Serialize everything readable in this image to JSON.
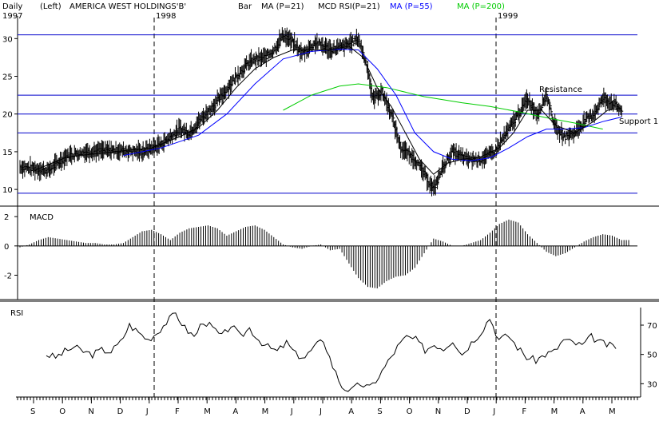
{
  "header": {
    "period": "Daily",
    "scale": "(Left)",
    "ticker": "AMERICA WEST HOLDINGS'B'",
    "bar_label": "Bar",
    "ma21_label": "MA (P=21)",
    "macd_rsi_label": "MCD RSI(P=21)",
    "ma55_label": "MA (P=55)",
    "ma200_label": "MA (P=200)"
  },
  "colors": {
    "ma55": "#0000ff",
    "ma200": "#00cc00",
    "hline": "#0000cc",
    "bars": "#000000"
  },
  "year_labels": [
    "1997",
    "1998",
    "1999"
  ],
  "annotations": {
    "resistance": "Resistance",
    "support": "Support 1"
  },
  "panels": {
    "macd_title": "MACD",
    "rsi_title": "RSI"
  },
  "chart_data": [
    {
      "type": "bar",
      "title": "AMERICA WEST HOLDINGS'B'",
      "ylim": [
        8,
        33
      ],
      "yticks": [
        10,
        15,
        20,
        25,
        30
      ],
      "months": [
        "S",
        "O",
        "N",
        "D",
        "J",
        "F",
        "M",
        "A",
        "M",
        "J",
        "J",
        "A",
        "S",
        "O",
        "N",
        "D",
        "J",
        "F",
        "M",
        "A",
        "M"
      ],
      "horizontal_lines": [
        30.5,
        22.5,
        20,
        17.5,
        9.5
      ],
      "price_points": [
        [
          0,
          13
        ],
        [
          6,
          12.5
        ],
        [
          10,
          14.5
        ],
        [
          14,
          15
        ],
        [
          20,
          15.2
        ],
        [
          26,
          15
        ],
        [
          30,
          16
        ],
        [
          34,
          18
        ],
        [
          36,
          17.5
        ],
        [
          38,
          19
        ],
        [
          41,
          21
        ],
        [
          43,
          22.5
        ],
        [
          46,
          25
        ],
        [
          49,
          27
        ],
        [
          52,
          27.5
        ],
        [
          54,
          28.5
        ],
        [
          56,
          30.5
        ],
        [
          58,
          29.5
        ],
        [
          60,
          28
        ],
        [
          63,
          29.5
        ],
        [
          66,
          28.5
        ],
        [
          69,
          29
        ],
        [
          72,
          30
        ],
        [
          74,
          26
        ],
        [
          75,
          22
        ],
        [
          77,
          23
        ],
        [
          79,
          20
        ],
        [
          81,
          15.5
        ],
        [
          84,
          14
        ],
        [
          86,
          12
        ],
        [
          88,
          10
        ],
        [
          90,
          13
        ],
        [
          92,
          15
        ],
        [
          95,
          14
        ],
        [
          98,
          14
        ],
        [
          101,
          15
        ],
        [
          104,
          18
        ],
        [
          106,
          20
        ],
        [
          108,
          22
        ],
        [
          110,
          20
        ],
        [
          112,
          22.5
        ],
        [
          114,
          18
        ],
        [
          116,
          17
        ],
        [
          118,
          17.5
        ],
        [
          120,
          19
        ],
        [
          122,
          20
        ],
        [
          124,
          22
        ],
        [
          126,
          21.5
        ],
        [
          128,
          20.5
        ]
      ],
      "ma21_points": [
        [
          3,
          12.5
        ],
        [
          10,
          14.3
        ],
        [
          20,
          15
        ],
        [
          28,
          15.5
        ],
        [
          34,
          17
        ],
        [
          38,
          18.2
        ],
        [
          42,
          20.5
        ],
        [
          46,
          23.5
        ],
        [
          50,
          26
        ],
        [
          54,
          27.5
        ],
        [
          58,
          28.5
        ],
        [
          62,
          28.5
        ],
        [
          66,
          28.5
        ],
        [
          70,
          29
        ],
        [
          73,
          27.5
        ],
        [
          76,
          23.5
        ],
        [
          79,
          21
        ],
        [
          82,
          17.5
        ],
        [
          85,
          14
        ],
        [
          88,
          12
        ],
        [
          91,
          13.5
        ],
        [
          94,
          14
        ],
        [
          98,
          14.3
        ],
        [
          102,
          15.5
        ],
        [
          105,
          17.5
        ],
        [
          108,
          20.5
        ],
        [
          111,
          20.5
        ],
        [
          114,
          18.5
        ],
        [
          118,
          17.5
        ],
        [
          122,
          19
        ],
        [
          125,
          20.5
        ],
        [
          128,
          20.8
        ]
      ],
      "ma55_points": [
        [
          22,
          14.5
        ],
        [
          30,
          15.5
        ],
        [
          38,
          17.2
        ],
        [
          44,
          20
        ],
        [
          50,
          24
        ],
        [
          56,
          27.3
        ],
        [
          62,
          28.3
        ],
        [
          68,
          28.6
        ],
        [
          72,
          28.5
        ],
        [
          76,
          26
        ],
        [
          80,
          22.5
        ],
        [
          84,
          17.5
        ],
        [
          88,
          15
        ],
        [
          92,
          14
        ],
        [
          96,
          13.8
        ],
        [
          100,
          14.2
        ],
        [
          104,
          15.5
        ],
        [
          108,
          17
        ],
        [
          112,
          18
        ],
        [
          116,
          18
        ],
        [
          120,
          18.2
        ],
        [
          124,
          19
        ],
        [
          128,
          19.6
        ]
      ],
      "ma200_points": [
        [
          56,
          20.5
        ],
        [
          62,
          22.5
        ],
        [
          68,
          23.7
        ],
        [
          72,
          24
        ],
        [
          78,
          23.5
        ],
        [
          86,
          22.3
        ],
        [
          94,
          21.5
        ],
        [
          100,
          21
        ],
        [
          106,
          20.3
        ],
        [
          112,
          19.5
        ],
        [
          118,
          18.8
        ],
        [
          124,
          18
        ]
      ]
    },
    {
      "type": "bar",
      "title": "MACD",
      "ylim": [
        -3.5,
        2.5
      ],
      "yticks": [
        2,
        0,
        -2
      ],
      "values": [
        -0.1,
        0.1,
        0.4,
        0.6,
        0.5,
        0.4,
        0.3,
        0.2,
        0.2,
        0.1,
        0.1,
        0.2,
        0.6,
        1.0,
        1.1,
        0.8,
        0.4,
        0.9,
        1.2,
        1.3,
        1.4,
        1.2,
        0.7,
        1.0,
        1.3,
        1.4,
        1.1,
        0.6,
        0.1,
        -0.1,
        -0.2,
        0.0,
        0.1,
        -0.3,
        -0.2,
        -1.2,
        -2.2,
        -2.8,
        -2.9,
        -2.4,
        -2.1,
        -2.0,
        -1.5,
        -0.5,
        0.5,
        0.3,
        0.0,
        0.0,
        0.2,
        0.4,
        0.9,
        1.5,
        1.8,
        1.6,
        0.8,
        0.2,
        -0.4,
        -0.7,
        -0.5,
        -0.1,
        0.3,
        0.6,
        0.8,
        0.7,
        0.4
      ]
    },
    {
      "type": "line",
      "title": "RSI",
      "ylim": [
        22,
        82
      ],
      "yticks": [
        70,
        50,
        30
      ],
      "values": [
        50,
        48,
        52,
        55,
        52,
        50,
        53,
        52,
        58,
        70,
        65,
        60,
        65,
        72,
        78,
        68,
        62,
        73,
        68,
        62,
        70,
        62,
        68,
        60,
        55,
        52,
        58,
        50,
        48,
        55,
        60,
        42,
        28,
        25,
        30,
        27,
        35,
        45,
        55,
        62,
        60,
        53,
        57,
        54,
        60,
        50,
        58,
        65,
        75,
        60,
        63,
        55,
        48,
        46,
        50,
        52,
        60,
        58,
        56,
        62,
        58,
        56,
        55
      ]
    }
  ]
}
